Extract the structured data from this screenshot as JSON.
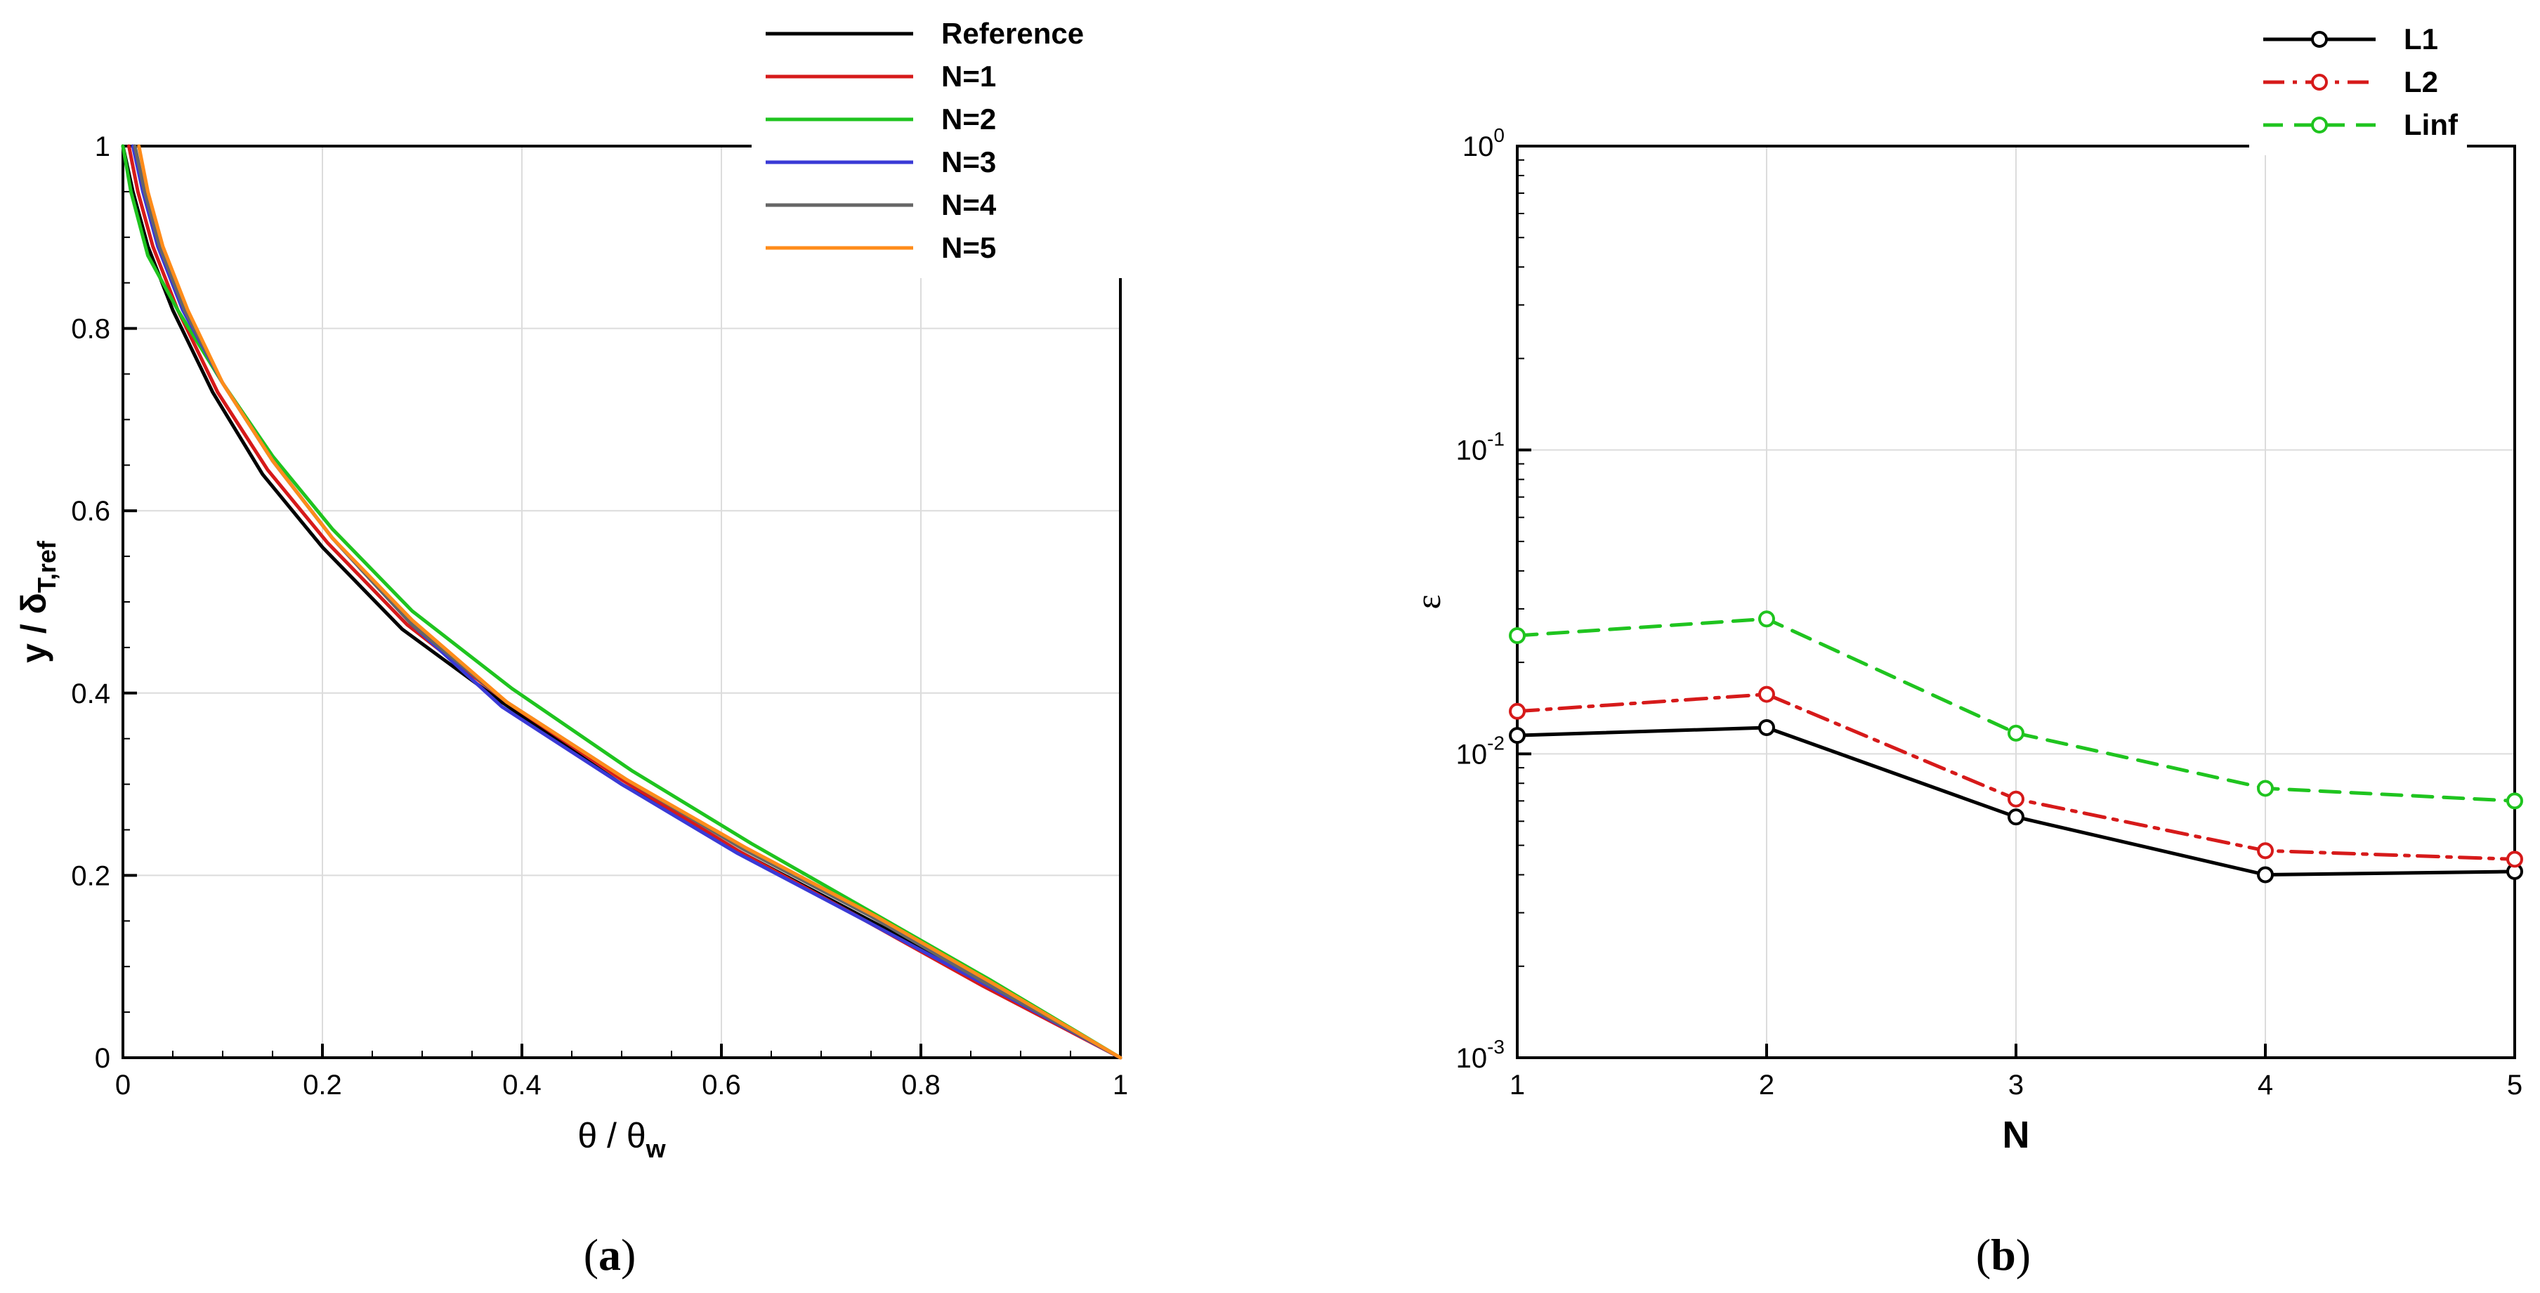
{
  "chart_data": [
    {
      "id": "a",
      "type": "line",
      "panel_label": {
        "open": "(",
        "letter": "a",
        "close": ")"
      },
      "xlabel": {
        "main": "θ / θ",
        "sub": "w"
      },
      "ylabel": {
        "main": "y / δ",
        "sub": "T,ref"
      },
      "xlim": [
        0,
        1
      ],
      "ylim": [
        0,
        1
      ],
      "xticks": [
        0,
        0.2,
        0.4,
        0.6,
        0.8,
        1
      ],
      "xtick_labels": [
        "0",
        "0.2",
        "0.4",
        "0.6",
        "0.8",
        "1"
      ],
      "yticks": [
        0,
        0.2,
        0.4,
        0.6,
        0.8,
        1
      ],
      "ytick_labels": [
        "0",
        "0.2",
        "0.4",
        "0.6",
        "0.8",
        "1"
      ],
      "grid": true,
      "legend_position": "top-right",
      "series": [
        {
          "name": "Reference",
          "color": "#000000",
          "x": [
            0.0,
            0.01,
            0.025,
            0.05,
            0.09,
            0.14,
            0.2,
            0.28,
            0.38,
            0.5,
            0.62,
            0.75,
            0.87,
            1.0
          ],
          "y": [
            1.0,
            0.95,
            0.89,
            0.82,
            0.73,
            0.64,
            0.56,
            0.47,
            0.39,
            0.3,
            0.225,
            0.15,
            0.08,
            0.0
          ]
        },
        {
          "name": "N=1",
          "color": "#d61a1a",
          "x": [
            0.006,
            0.015,
            0.03,
            0.055,
            0.095,
            0.145,
            0.205,
            0.285,
            0.385,
            0.5,
            0.62,
            0.745,
            0.86,
            1.0
          ],
          "y": [
            1.0,
            0.95,
            0.89,
            0.82,
            0.73,
            0.645,
            0.565,
            0.475,
            0.39,
            0.305,
            0.225,
            0.15,
            0.08,
            0.0
          ]
        },
        {
          "name": "N=2",
          "color": "#1fc41f",
          "x": [
            0.0,
            0.008,
            0.025,
            0.055,
            0.1,
            0.15,
            0.21,
            0.29,
            0.39,
            0.51,
            0.63,
            0.75,
            0.87,
            1.0
          ],
          "y": [
            1.0,
            0.95,
            0.88,
            0.82,
            0.74,
            0.66,
            0.58,
            0.49,
            0.405,
            0.315,
            0.235,
            0.16,
            0.085,
            0.0
          ]
        },
        {
          "name": "N=3",
          "color": "#3a3ad6",
          "x": [
            0.01,
            0.02,
            0.035,
            0.06,
            0.1,
            0.15,
            0.21,
            0.29,
            0.38,
            0.5,
            0.615,
            0.745,
            0.865,
            1.0
          ],
          "y": [
            1.0,
            0.95,
            0.89,
            0.82,
            0.74,
            0.655,
            0.57,
            0.475,
            0.385,
            0.3,
            0.225,
            0.15,
            0.08,
            0.0
          ]
        },
        {
          "name": "N=4",
          "color": "#666666",
          "x": [
            0.012,
            0.022,
            0.037,
            0.062,
            0.1,
            0.15,
            0.21,
            0.29,
            0.385,
            0.505,
            0.62,
            0.75,
            0.865,
            1.0
          ],
          "y": [
            1.0,
            0.95,
            0.89,
            0.82,
            0.74,
            0.655,
            0.57,
            0.475,
            0.39,
            0.305,
            0.23,
            0.155,
            0.082,
            0.0
          ]
        },
        {
          "name": "N=5",
          "color": "#ff8c1a",
          "x": [
            0.016,
            0.025,
            0.04,
            0.065,
            0.1,
            0.15,
            0.21,
            0.29,
            0.385,
            0.505,
            0.625,
            0.755,
            0.87,
            1.0
          ],
          "y": [
            1.0,
            0.95,
            0.89,
            0.82,
            0.74,
            0.655,
            0.57,
            0.48,
            0.39,
            0.305,
            0.23,
            0.155,
            0.083,
            0.0
          ]
        }
      ]
    },
    {
      "id": "b",
      "type": "line",
      "panel_label": {
        "open": "(",
        "letter": "b",
        "close": ")"
      },
      "xlabel": {
        "main": "N",
        "sub": ""
      },
      "ylabel": {
        "main": "ε",
        "sub": ""
      },
      "xlim": [
        1,
        5
      ],
      "ylim": [
        0.001,
        1
      ],
      "yscale": "log",
      "xticks": [
        1,
        2,
        3,
        4,
        5
      ],
      "xtick_labels": [
        "1",
        "2",
        "3",
        "4",
        "5"
      ],
      "yticks": [
        0.001,
        0.01,
        0.1,
        1
      ],
      "ytick_labels": [
        {
          "base": "10",
          "exp": "-3"
        },
        {
          "base": "10",
          "exp": "-2"
        },
        {
          "base": "10",
          "exp": "-1"
        },
        {
          "base": "10",
          "exp": "0"
        }
      ],
      "grid": true,
      "legend_position": "top-right",
      "categories": [
        1,
        2,
        3,
        4,
        5
      ],
      "series": [
        {
          "name": "L1",
          "color": "#000000",
          "dash": "solid",
          "values": [
            0.0115,
            0.0122,
            0.0062,
            0.004,
            0.0041
          ]
        },
        {
          "name": "L2",
          "color": "#d61a1a",
          "dash": "dashdot",
          "values": [
            0.0138,
            0.0157,
            0.0071,
            0.0048,
            0.0045
          ]
        },
        {
          "name": "Linf",
          "color": "#1fc41f",
          "dash": "dash",
          "values": [
            0.0245,
            0.0278,
            0.0117,
            0.0077,
            0.007
          ]
        }
      ]
    }
  ]
}
